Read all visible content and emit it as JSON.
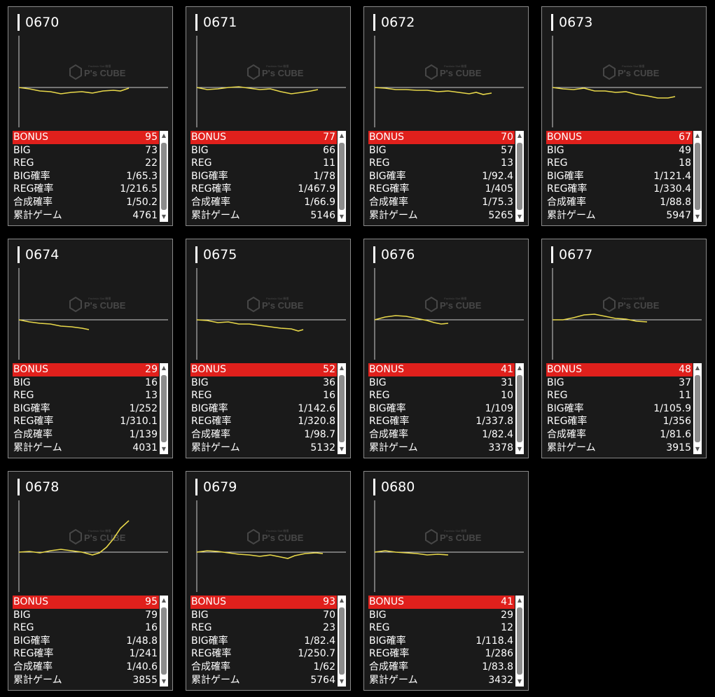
{
  "labels": {
    "bonus": "BONUS",
    "big": "BIG",
    "reg": "REG",
    "big_rate": "BIG確率",
    "reg_rate": "REG確率",
    "combined_rate": "合成確率",
    "total_games": "累計ゲーム"
  },
  "watermark": {
    "brand": "P's CUBE",
    "tagline": "Pachislo Slot 機種"
  },
  "colors": {
    "bonus_bar": "#e0201c",
    "graph_line": "#e8d84a",
    "card_bg": "#1a1a1a"
  },
  "machines": [
    {
      "id": "0670",
      "bonus": "95",
      "big": "73",
      "reg": "22",
      "big_rate": "1/65.3",
      "reg_rate": "1/216.5",
      "combined_rate": "1/50.2",
      "total_games": "4761"
    },
    {
      "id": "0671",
      "bonus": "77",
      "big": "66",
      "reg": "11",
      "big_rate": "1/78",
      "reg_rate": "1/467.9",
      "combined_rate": "1/66.9",
      "total_games": "5146"
    },
    {
      "id": "0672",
      "bonus": "70",
      "big": "57",
      "reg": "13",
      "big_rate": "1/92.4",
      "reg_rate": "1/405",
      "combined_rate": "1/75.3",
      "total_games": "5265"
    },
    {
      "id": "0673",
      "bonus": "67",
      "big": "49",
      "reg": "18",
      "big_rate": "1/121.4",
      "reg_rate": "1/330.4",
      "combined_rate": "1/88.8",
      "total_games": "5947"
    },
    {
      "id": "0674",
      "bonus": "29",
      "big": "16",
      "reg": "13",
      "big_rate": "1/252",
      "reg_rate": "1/310.1",
      "combined_rate": "1/139",
      "total_games": "4031"
    },
    {
      "id": "0675",
      "bonus": "52",
      "big": "36",
      "reg": "16",
      "big_rate": "1/142.6",
      "reg_rate": "1/320.8",
      "combined_rate": "1/98.7",
      "total_games": "5132"
    },
    {
      "id": "0676",
      "bonus": "41",
      "big": "31",
      "reg": "10",
      "big_rate": "1/109",
      "reg_rate": "1/337.8",
      "combined_rate": "1/82.4",
      "total_games": "3378"
    },
    {
      "id": "0677",
      "bonus": "48",
      "big": "37",
      "reg": "11",
      "big_rate": "1/105.9",
      "reg_rate": "1/356",
      "combined_rate": "1/81.6",
      "total_games": "3915"
    },
    {
      "id": "0678",
      "bonus": "95",
      "big": "79",
      "reg": "16",
      "big_rate": "1/48.8",
      "reg_rate": "1/241",
      "combined_rate": "1/40.6",
      "total_games": "3855"
    },
    {
      "id": "0679",
      "bonus": "93",
      "big": "70",
      "reg": "23",
      "big_rate": "1/82.4",
      "reg_rate": "1/250.7",
      "combined_rate": "1/62",
      "total_games": "5764"
    },
    {
      "id": "0680",
      "bonus": "41",
      "big": "29",
      "reg": "12",
      "big_rate": "1/118.4",
      "reg_rate": "1/286",
      "combined_rate": "1/83.8",
      "total_games": "3432"
    }
  ]
}
